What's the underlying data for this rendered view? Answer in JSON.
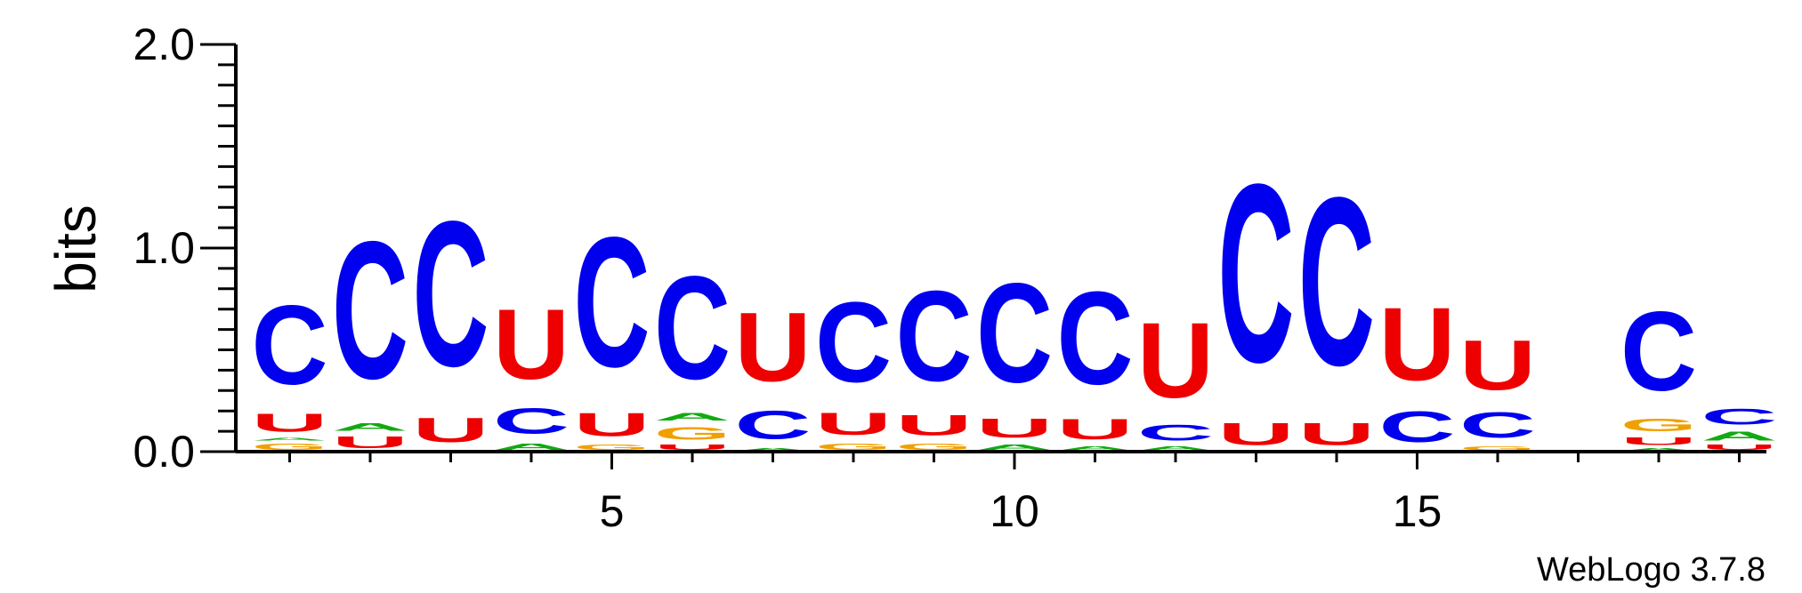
{
  "chart_data": {
    "type": "sequence-logo",
    "ylabel": "bits",
    "ylim": [
      0,
      2.0
    ],
    "y_ticks": [
      "0.0",
      "1.0",
      "2.0"
    ],
    "x_ticks": [
      5,
      10,
      15
    ],
    "credit": "WebLogo 3.7.8",
    "colors": {
      "C": "#0000ee",
      "U": "#ee0000",
      "A": "#11aa11",
      "G": "#f0a000"
    },
    "positions": [
      {
        "pos": 1,
        "stack": [
          {
            "l": "G",
            "h": 0.05
          },
          {
            "l": "A",
            "h": 0.02
          },
          {
            "l": "U",
            "h": 0.14
          },
          {
            "l": "C",
            "h": 0.62
          }
        ]
      },
      {
        "pos": 2,
        "stack": [
          {
            "l": "U",
            "h": 0.09
          },
          {
            "l": "A",
            "h": 0.06
          },
          {
            "l": "C",
            "h": 1.08
          }
        ]
      },
      {
        "pos": 3,
        "stack": [
          {
            "l": "A",
            "h": 0.01
          },
          {
            "l": "U",
            "h": 0.19
          },
          {
            "l": "C",
            "h": 1.14
          }
        ]
      },
      {
        "pos": 4,
        "stack": [
          {
            "l": "A",
            "h": 0.05
          },
          {
            "l": "C",
            "h": 0.2
          },
          {
            "l": "U",
            "h": 0.55
          }
        ]
      },
      {
        "pos": 5,
        "stack": [
          {
            "l": "G",
            "h": 0.04
          },
          {
            "l": "U",
            "h": 0.18
          },
          {
            "l": "C",
            "h": 1.02
          }
        ]
      },
      {
        "pos": 6,
        "stack": [
          {
            "l": "U",
            "h": 0.04
          },
          {
            "l": "G",
            "h": 0.1
          },
          {
            "l": "A",
            "h": 0.06
          },
          {
            "l": "C",
            "h": 0.81
          }
        ]
      },
      {
        "pos": 7,
        "stack": [
          {
            "l": "A",
            "h": 0.02
          },
          {
            "l": "C",
            "h": 0.22
          },
          {
            "l": "U",
            "h": 0.54
          }
        ]
      },
      {
        "pos": 8,
        "stack": [
          {
            "l": "G",
            "h": 0.05
          },
          {
            "l": "U",
            "h": 0.17
          },
          {
            "l": "C",
            "h": 0.63
          }
        ]
      },
      {
        "pos": 9,
        "stack": [
          {
            "l": "G",
            "h": 0.05
          },
          {
            "l": "U",
            "h": 0.16
          },
          {
            "l": "C",
            "h": 0.71
          }
        ]
      },
      {
        "pos": 10,
        "stack": [
          {
            "l": "A",
            "h": 0.04
          },
          {
            "l": "U",
            "h": 0.15
          },
          {
            "l": "C",
            "h": 0.78
          }
        ]
      },
      {
        "pos": 11,
        "stack": [
          {
            "l": "A",
            "h": 0.03
          },
          {
            "l": "U",
            "h": 0.16
          },
          {
            "l": "C",
            "h": 0.73
          }
        ]
      },
      {
        "pos": 12,
        "stack": [
          {
            "l": "A",
            "h": 0.03
          },
          {
            "l": "C",
            "h": 0.12
          },
          {
            "l": "U",
            "h": 0.59
          }
        ]
      },
      {
        "pos": 13,
        "stack": [
          {
            "l": "U",
            "h": 0.17
          },
          {
            "l": "C",
            "h": 1.4
          }
        ]
      },
      {
        "pos": 14,
        "stack": [
          {
            "l": "U",
            "h": 0.17
          },
          {
            "l": "C",
            "h": 1.32
          }
        ]
      },
      {
        "pos": 15,
        "stack": [
          {
            "l": "C",
            "h": 0.24
          },
          {
            "l": "U",
            "h": 0.57
          }
        ]
      },
      {
        "pos": 16,
        "stack": [
          {
            "l": "G",
            "h": 0.03
          },
          {
            "l": "C",
            "h": 0.2
          },
          {
            "l": "U",
            "h": 0.39
          }
        ]
      },
      {
        "pos": 17,
        "stack": []
      },
      {
        "pos": 18,
        "stack": [
          {
            "l": "A",
            "h": 0.02
          },
          {
            "l": "U",
            "h": 0.06
          },
          {
            "l": "G",
            "h": 0.1
          },
          {
            "l": "C",
            "h": 0.62
          }
        ]
      },
      {
        "pos": 19,
        "stack": [
          {
            "l": "U",
            "h": 0.04
          },
          {
            "l": "A",
            "h": 0.07
          },
          {
            "l": "C",
            "h": 0.12
          }
        ]
      }
    ]
  }
}
